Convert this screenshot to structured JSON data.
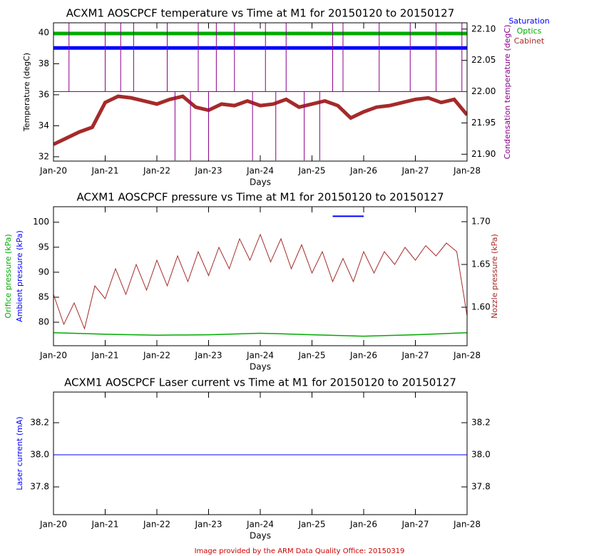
{
  "chart_data": [
    {
      "type": "line",
      "title": "ACXM1 AOSCPCF temperature vs Time at M1 for 20150120 to 20150127",
      "xlabel": "Days",
      "ylabel": "Temperature (degC)",
      "xlim": [
        20,
        28
      ],
      "xticks": [
        {
          "value": 20,
          "label": "Jan-20"
        },
        {
          "value": 21,
          "label": "Jan-21"
        },
        {
          "value": 22,
          "label": "Jan-22"
        },
        {
          "value": 23,
          "label": "Jan-23"
        },
        {
          "value": 24,
          "label": "Jan-24"
        },
        {
          "value": 25,
          "label": "Jan-25"
        },
        {
          "value": 26,
          "label": "Jan-26"
        },
        {
          "value": 27,
          "label": "Jan-27"
        },
        {
          "value": 28,
          "label": "Jan-28"
        }
      ],
      "ylim": [
        31.72,
        40.64
      ],
      "yticks": [
        32,
        34,
        36,
        38,
        40
      ],
      "y2lim": [
        21.889,
        22.11
      ],
      "y2ticks": [
        {
          "value": 21.9,
          "label": "21.90"
        },
        21.95,
        {
          "value": 22,
          "label": "22.00"
        },
        22.05,
        {
          "value": 22.1,
          "label": "22.10"
        }
      ],
      "series": [
        {
          "name": "Saturation",
          "color": "#0000ff",
          "x": [
            20,
            28
          ],
          "values": [
            39.02,
            39.02
          ]
        },
        {
          "name": "Optics",
          "color": "#00aa00",
          "x": [
            20,
            28
          ],
          "values": [
            39.95,
            39.95
          ]
        },
        {
          "name": "Cabinet",
          "color": "#a52a2a",
          "x": [
            20,
            20.25,
            20.5,
            20.75,
            21,
            21.25,
            21.5,
            21.75,
            22,
            22.25,
            22.5,
            22.75,
            23,
            23.25,
            23.5,
            23.75,
            24,
            24.25,
            24.5,
            24.75,
            25,
            25.25,
            25.5,
            25.75,
            26,
            26.25,
            26.5,
            26.75,
            27,
            27.25,
            27.5,
            27.75,
            28
          ],
          "values": [
            32.8,
            33.2,
            33.6,
            33.9,
            35.5,
            35.9,
            35.8,
            35.6,
            35.4,
            35.7,
            35.9,
            35.2,
            35,
            35.4,
            35.3,
            35.6,
            35.3,
            35.4,
            35.7,
            35.2,
            35.4,
            35.6,
            35.3,
            34.5,
            34.9,
            35.2,
            35.3,
            35.5,
            35.7,
            35.8,
            35.5,
            35.7,
            34.7
          ]
        },
        {
          "name": "Condensation temperature (degC)",
          "color": "#8b008b",
          "axis": "y2",
          "x": [
            20,
            20.3,
            20.3,
            20.3,
            21,
            21,
            21,
            21.3,
            21.3,
            21.3,
            21.55,
            21.55,
            21.55,
            22.2,
            22.2,
            22.2,
            22.35,
            22.35,
            22.35,
            22.65,
            22.65,
            22.65,
            22.8,
            22.8,
            22.8,
            23,
            23,
            23,
            23.15,
            23.15,
            23.15,
            23.5,
            23.5,
            23.5,
            23.85,
            23.85,
            23.85,
            24.1,
            24.1,
            24.1,
            24.3,
            24.3,
            24.3,
            24.5,
            24.5,
            24.5,
            24.85,
            24.85,
            24.85,
            25.15,
            25.15,
            25.15,
            25.4,
            25.4,
            25.4,
            25.6,
            25.6,
            25.6,
            26.3,
            26.3,
            26.3,
            26.9,
            26.9,
            26.9,
            27.4,
            27.4,
            27.4,
            27.9,
            27.9,
            27.9,
            28
          ],
          "values": [
            22,
            22,
            22.11,
            22,
            22,
            22.11,
            22,
            22,
            22.11,
            22,
            22,
            22.11,
            22,
            22,
            22.11,
            22,
            22,
            21.89,
            22,
            22,
            21.89,
            22,
            22,
            22.11,
            22,
            22,
            21.89,
            22,
            22,
            22.11,
            22,
            22,
            22.11,
            22,
            22,
            21.89,
            22,
            22,
            22.11,
            22,
            22,
            21.89,
            22,
            22,
            22.11,
            22,
            22,
            21.89,
            22,
            22,
            21.89,
            22,
            22,
            22.11,
            22,
            22,
            22.11,
            22,
            22,
            22.11,
            22,
            22,
            22.11,
            22,
            22,
            22.11,
            22,
            22,
            22.11,
            22,
            22
          ]
        }
      ]
    },
    {
      "type": "line",
      "title": "ACXM1 AOSCPCF pressure vs Time at M1 for 20150120 to 20150127",
      "xlabel": "Days",
      "xlim": [
        20,
        28
      ],
      "xticks": [
        {
          "value": 20,
          "label": "Jan-20"
        },
        {
          "value": 21,
          "label": "Jan-21"
        },
        {
          "value": 22,
          "label": "Jan-22"
        },
        {
          "value": 23,
          "label": "Jan-23"
        },
        {
          "value": 24,
          "label": "Jan-24"
        },
        {
          "value": 25,
          "label": "Jan-25"
        },
        {
          "value": 26,
          "label": "Jan-26"
        },
        {
          "value": 27,
          "label": "Jan-27"
        },
        {
          "value": 28,
          "label": "Jan-28"
        }
      ],
      "ylim": [
        75.3,
        103.1
      ],
      "yticks": [
        80,
        85,
        90,
        95,
        100
      ],
      "y2lim": [
        1.555,
        1.7175
      ],
      "y2ticks": [
        {
          "value": 1.6,
          "label": "1.60"
        },
        1.65,
        {
          "value": 1.7,
          "label": "1.70"
        }
      ],
      "series": [
        {
          "name": "Orifice pressure (kPa)",
          "color": "#00aa00",
          "x": [
            20,
            21,
            22,
            23,
            24,
            25,
            26,
            27,
            28
          ],
          "values": [
            77.9,
            77.6,
            77.4,
            77.5,
            77.8,
            77.5,
            77.2,
            77.5,
            77.9
          ]
        },
        {
          "name": "Ambient pressure (kPa)",
          "color": "#0000ff",
          "x": [
            25.4,
            26
          ],
          "values": [
            101.2,
            101.2
          ]
        },
        {
          "name": "Nozzle pressure (kPa)",
          "color": "#a52a2a",
          "axis": "y2",
          "x": [
            20,
            20.2,
            20.4,
            20.6,
            20.8,
            21,
            21.2,
            21.4,
            21.6,
            21.8,
            22,
            22.2,
            22.4,
            22.6,
            22.8,
            23,
            23.2,
            23.4,
            23.6,
            23.8,
            24,
            24.2,
            24.4,
            24.6,
            24.8,
            25,
            25.2,
            25.4,
            25.6,
            25.8,
            26,
            26.2,
            26.4,
            26.6,
            26.8,
            27,
            27.2,
            27.4,
            27.6,
            27.8,
            28
          ],
          "values": [
            1.615,
            1.58,
            1.605,
            1.575,
            1.625,
            1.61,
            1.645,
            1.615,
            1.65,
            1.62,
            1.655,
            1.625,
            1.66,
            1.63,
            1.665,
            1.637,
            1.67,
            1.645,
            1.68,
            1.655,
            1.685,
            1.653,
            1.68,
            1.645,
            1.673,
            1.64,
            1.665,
            1.63,
            1.657,
            1.63,
            1.665,
            1.64,
            1.665,
            1.65,
            1.67,
            1.655,
            1.672,
            1.66,
            1.675,
            1.665,
            1.59
          ]
        }
      ]
    },
    {
      "type": "line",
      "title": "ACXM1 AOSCPCF Laser current vs Time at M1 for 20150120 to 20150127",
      "xlabel": "Days",
      "xlim": [
        20,
        28
      ],
      "xticks": [
        {
          "value": 20,
          "label": "Jan-20"
        },
        {
          "value": 21,
          "label": "Jan-21"
        },
        {
          "value": 22,
          "label": "Jan-22"
        },
        {
          "value": 23,
          "label": "Jan-23"
        },
        {
          "value": 24,
          "label": "Jan-24"
        },
        {
          "value": 25,
          "label": "Jan-25"
        },
        {
          "value": 26,
          "label": "Jan-26"
        },
        {
          "value": 27,
          "label": "Jan-27"
        },
        {
          "value": 28,
          "label": "Jan-28"
        }
      ],
      "ylim": [
        37.627,
        38.391
      ],
      "yticks": [
        37.8,
        {
          "value": 38,
          "label": "38.0"
        },
        38.2
      ],
      "y2lim": [
        37.627,
        38.391
      ],
      "y2ticks": [
        37.8,
        {
          "value": 38,
          "label": "38.0"
        },
        38.2
      ],
      "series": [
        {
          "name": "Laser current (mA)",
          "color": "#0000ff",
          "x": [
            20,
            28
          ],
          "values": [
            38,
            38
          ]
        }
      ]
    }
  ],
  "footer": "Image provided by the ARM Data Quality Office: 20150319"
}
